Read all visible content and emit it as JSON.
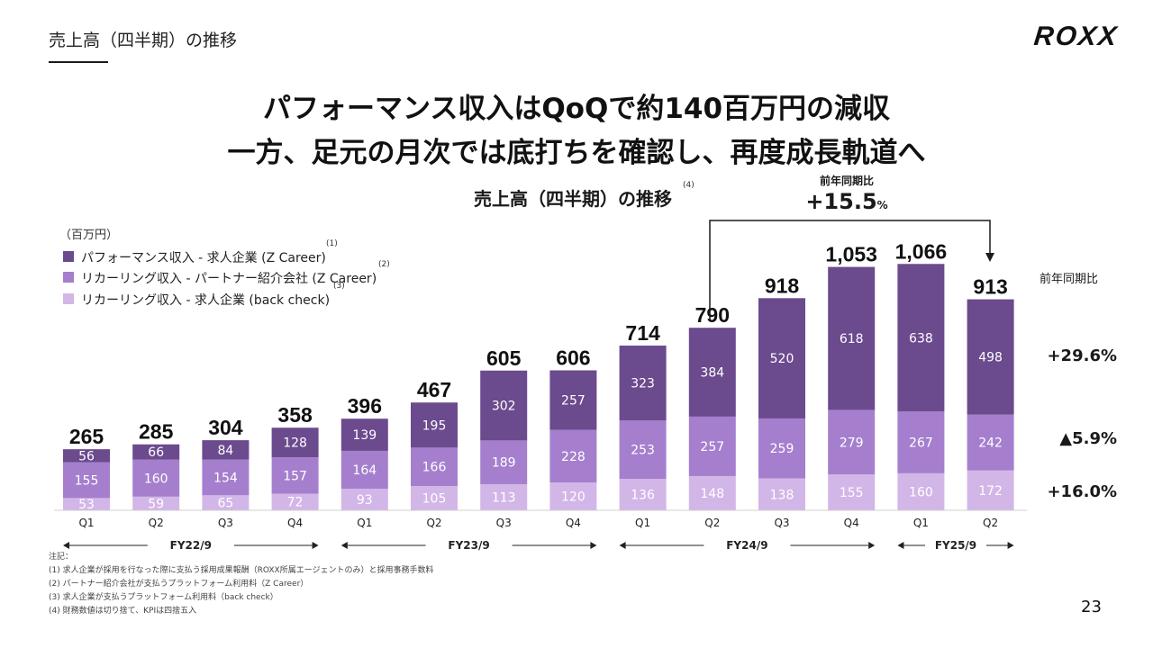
{
  "header": {
    "section_title": "売上高（四半期）の推移",
    "logo_text": "ROXX",
    "page_number": "23"
  },
  "headline": {
    "line1": "パフォーマンス収入はQoQで約140百万円の減収",
    "line2": "一方、足元の月次では底打ちを確認し、再度成長軌道へ"
  },
  "chart_meta": {
    "title": "売上高（四半期）の推移",
    "title_note": "(4)",
    "unit_label": "（百万円）",
    "yoy_top_label": "前年同期比",
    "yoy_top_value": "+15.5",
    "yoy_top_unit": "%",
    "yoy_right_label": "前年同期比",
    "yoy_series": [
      "+29.6%",
      "▲5.9%",
      "+16.0%"
    ]
  },
  "legend": [
    {
      "label": "パフォーマンス収入 - 求人企業 (Z Career)",
      "note": "(1)"
    },
    {
      "label": "リカーリング収入 - パートナー紹介会社 (Z Career)",
      "note": "(2)"
    },
    {
      "label": "リカーリング収入 - 求人企業 (back check)",
      "note": "(3)"
    }
  ],
  "chart_data": {
    "type": "bar",
    "stacked": true,
    "title": "売上高（四半期）の推移",
    "ylabel": "（百万円）",
    "categories": [
      "Q1",
      "Q2",
      "Q3",
      "Q4",
      "Q1",
      "Q2",
      "Q3",
      "Q4",
      "Q1",
      "Q2",
      "Q3",
      "Q4",
      "Q1",
      "Q2"
    ],
    "fiscal_years": [
      {
        "label": "FY22/9",
        "start": 0,
        "end": 3
      },
      {
        "label": "FY23/9",
        "start": 4,
        "end": 7
      },
      {
        "label": "FY24/9",
        "start": 8,
        "end": 11
      },
      {
        "label": "FY25/9",
        "start": 12,
        "end": 13
      }
    ],
    "series": [
      {
        "name": "リカーリング収入 - 求人企業 (back check)",
        "color": "#d3b6e8",
        "values": [
          53,
          59,
          65,
          72,
          93,
          105,
          113,
          120,
          136,
          148,
          138,
          155,
          160,
          172
        ]
      },
      {
        "name": "リカーリング収入 - パートナー紹介会社 (Z Career)",
        "color": "#a57fcd",
        "values": [
          155,
          160,
          154,
          157,
          164,
          166,
          189,
          228,
          253,
          257,
          259,
          279,
          267,
          242
        ]
      },
      {
        "name": "パフォーマンス収入 - 求人企業 (Z Career)",
        "color": "#6b4a8e",
        "values": [
          56,
          66,
          84,
          128,
          139,
          195,
          302,
          257,
          323,
          384,
          520,
          618,
          638,
          498
        ]
      }
    ],
    "totals": [
      "265",
      "285",
      "304",
      "358",
      "396",
      "467",
      "605",
      "606",
      "714",
      "790",
      "918",
      "1,053",
      "1,066",
      "913"
    ],
    "ylim": [
      0,
      1066
    ]
  },
  "footnotes": {
    "title": "注記：",
    "items": [
      "(1) 求人企業が採用を行なった際に支払う採用成果報酬（ROXX所属エージェントのみ）と採用事務手数料",
      "(2) パートナー紹介会社が支払うプラットフォーム利用料（Z Career）",
      "(3) 求人企業が支払うプラットフォーム利用料（back check）",
      "(4) 財務数値は切り捨て、KPIは四捨五入"
    ]
  }
}
